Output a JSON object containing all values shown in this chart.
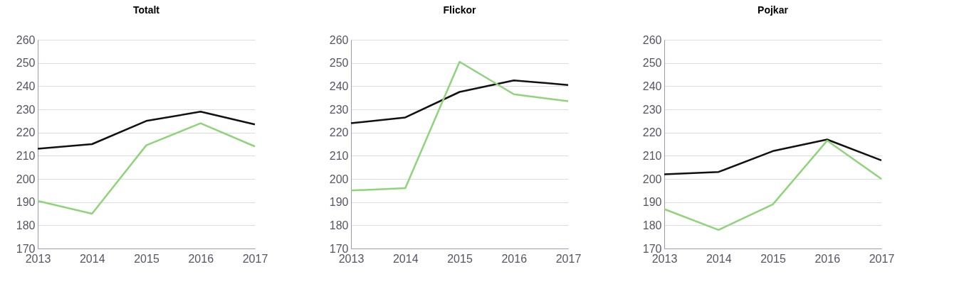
{
  "chart_data": [
    {
      "type": "line",
      "title": "Totalt",
      "categories": [
        "2013",
        "2014",
        "2015",
        "2016",
        "2017"
      ],
      "ylim": [
        170,
        260
      ],
      "yticks": [
        170,
        180,
        190,
        200,
        210,
        220,
        230,
        240,
        250,
        260
      ],
      "grid": "y",
      "legend": false,
      "series": [
        {
          "color": "#111111",
          "values": [
            213,
            215,
            225,
            229,
            223.5
          ]
        },
        {
          "color": "#8fd47a",
          "values": [
            190.5,
            185,
            214.5,
            224,
            214
          ]
        }
      ]
    },
    {
      "type": "line",
      "title": "Flickor",
      "categories": [
        "2013",
        "2014",
        "2015",
        "2016",
        "2017"
      ],
      "ylim": [
        170,
        260
      ],
      "yticks": [
        170,
        180,
        190,
        200,
        210,
        220,
        230,
        240,
        250,
        260
      ],
      "grid": "y",
      "legend": false,
      "series": [
        {
          "color": "#111111",
          "values": [
            224,
            226.5,
            237.5,
            242.5,
            240.5
          ]
        },
        {
          "color": "#8fd47a",
          "values": [
            195,
            196,
            250.5,
            236.5,
            233.5
          ]
        }
      ]
    },
    {
      "type": "line",
      "title": "Pojkar",
      "categories": [
        "2013",
        "2014",
        "2015",
        "2016",
        "2017"
      ],
      "ylim": [
        170,
        260
      ],
      "yticks": [
        170,
        180,
        190,
        200,
        210,
        220,
        230,
        240,
        250,
        260
      ],
      "grid": "y",
      "legend": false,
      "series": [
        {
          "color": "#111111",
          "values": [
            202,
            203,
            212,
            217,
            208
          ]
        },
        {
          "color": "#8fd47a",
          "values": [
            187,
            178,
            189,
            216.5,
            200
          ]
        }
      ]
    }
  ]
}
